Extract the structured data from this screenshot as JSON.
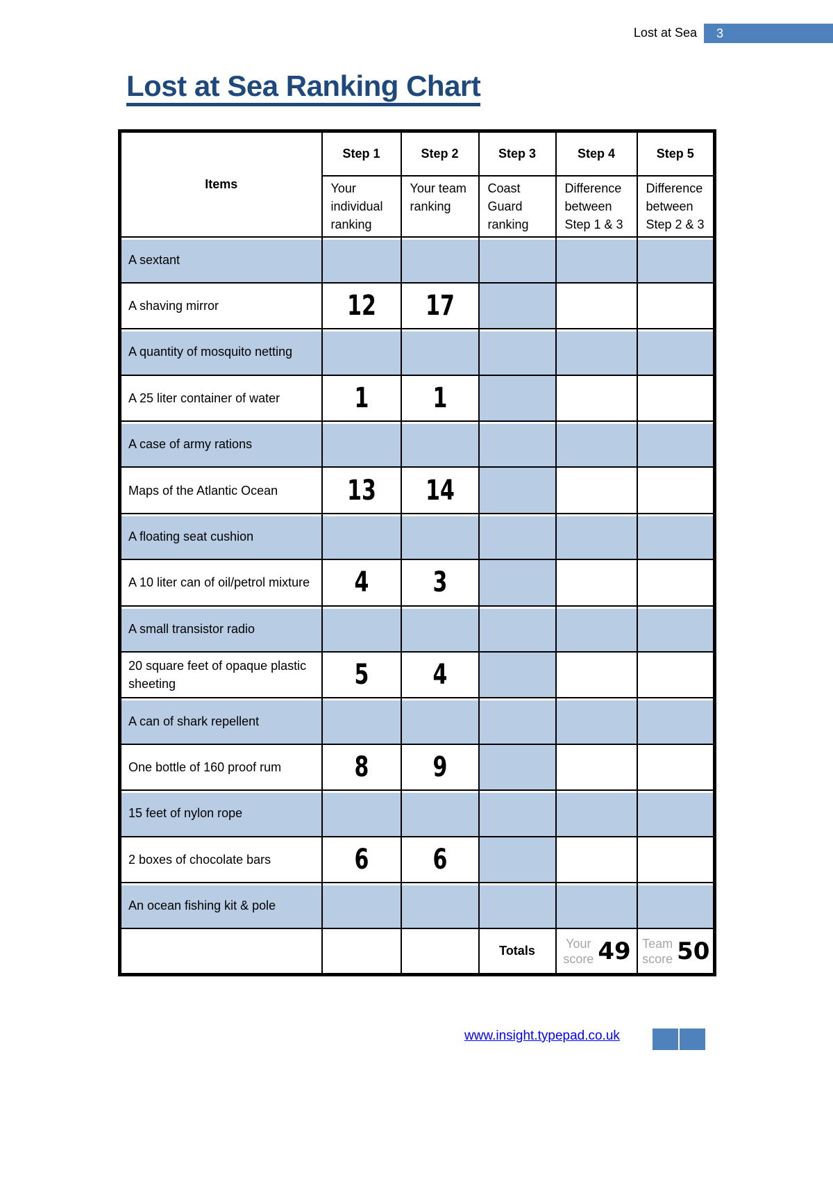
{
  "header": {
    "text": "Lost at Sea",
    "page_number": "3"
  },
  "title": "Lost at Sea Ranking Chart",
  "table": {
    "items_header": "Items",
    "steps": [
      {
        "label": "Step 1",
        "desc": "Your individual ranking"
      },
      {
        "label": "Step 2",
        "desc": "Your team ranking"
      },
      {
        "label": "Step 3",
        "desc": "Coast Guard ranking"
      },
      {
        "label": "Step 4",
        "desc": "Difference between Step 1 & 3"
      },
      {
        "label": "Step 5",
        "desc": "Difference between Step 2 & 3"
      }
    ],
    "rows": [
      {
        "item": "A sextant",
        "step1": "",
        "step2": ""
      },
      {
        "item": "A shaving mirror",
        "step1": "12",
        "step2": "17"
      },
      {
        "item": "A quantity of mosquito netting",
        "step1": "",
        "step2": ""
      },
      {
        "item": "A 25 liter container of water",
        "step1": "1",
        "step2": "1"
      },
      {
        "item": "A case of army rations",
        "step1": "",
        "step2": ""
      },
      {
        "item": "Maps of the Atlantic Ocean",
        "step1": "13",
        "step2": "14"
      },
      {
        "item": "A floating seat cushion",
        "step1": "",
        "step2": ""
      },
      {
        "item": "A 10 liter can of oil/petrol mixture",
        "step1": "4",
        "step2": "3"
      },
      {
        "item": "A small transistor radio",
        "step1": "",
        "step2": ""
      },
      {
        "item": "20 square feet of opaque plastic sheeting",
        "step1": "5",
        "step2": "4"
      },
      {
        "item": "A can of shark repellent",
        "step1": "",
        "step2": ""
      },
      {
        "item": "One bottle of 160 proof rum",
        "step1": "8",
        "step2": "9"
      },
      {
        "item": "15 feet of nylon rope",
        "step1": "",
        "step2": ""
      },
      {
        "item": "2 boxes of chocolate bars",
        "step1": "6",
        "step2": "6"
      },
      {
        "item": "An ocean fishing kit & pole",
        "step1": "",
        "step2": ""
      }
    ],
    "totals": {
      "label": "Totals",
      "your_score_placeholder": "Your score",
      "your_score": "49",
      "team_score_placeholder": "Team score",
      "team_score": "50"
    }
  },
  "footer": {
    "link": "www.insight.typepad.co.uk"
  },
  "colors": {
    "accent": "#4f81bd",
    "title": "#1f497d",
    "row_fill": "#b8cce4"
  }
}
